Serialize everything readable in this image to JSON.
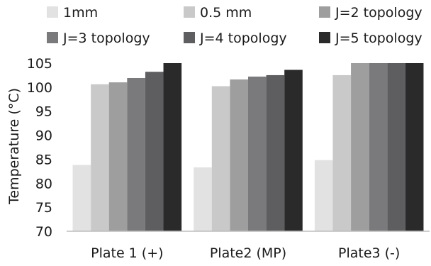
{
  "chart_data": {
    "type": "bar",
    "title": "",
    "xlabel": "",
    "ylabel": "Temperature (°C)",
    "ylim": [
      70,
      105
    ],
    "yticks": [
      70,
      75,
      80,
      85,
      90,
      95,
      100,
      105
    ],
    "grid": false,
    "legend_position": "top",
    "categories": [
      "Plate 1 (+)",
      "Plate2 (MP)",
      "Plate3 (-)"
    ],
    "series": [
      {
        "name": "1mm",
        "color": "#e2e2e2",
        "values": [
          83.8,
          83.3,
          84.8
        ]
      },
      {
        "name": "0.5 mm",
        "color": "#c9c9c9",
        "values": [
          100.6,
          100.2,
          102.5
        ]
      },
      {
        "name": "J=2 topology",
        "color": "#9e9e9e",
        "values": [
          101.0,
          101.6,
          105
        ]
      },
      {
        "name": "J=3 topology",
        "color": "#7a7a7c",
        "values": [
          101.9,
          102.2,
          105
        ]
      },
      {
        "name": "J=4 topology",
        "color": "#5e5e60",
        "values": [
          103.2,
          102.5,
          105
        ]
      },
      {
        "name": "J=5 topology",
        "color": "#2a2a2a",
        "values": [
          105,
          103.6,
          105
        ]
      }
    ]
  }
}
